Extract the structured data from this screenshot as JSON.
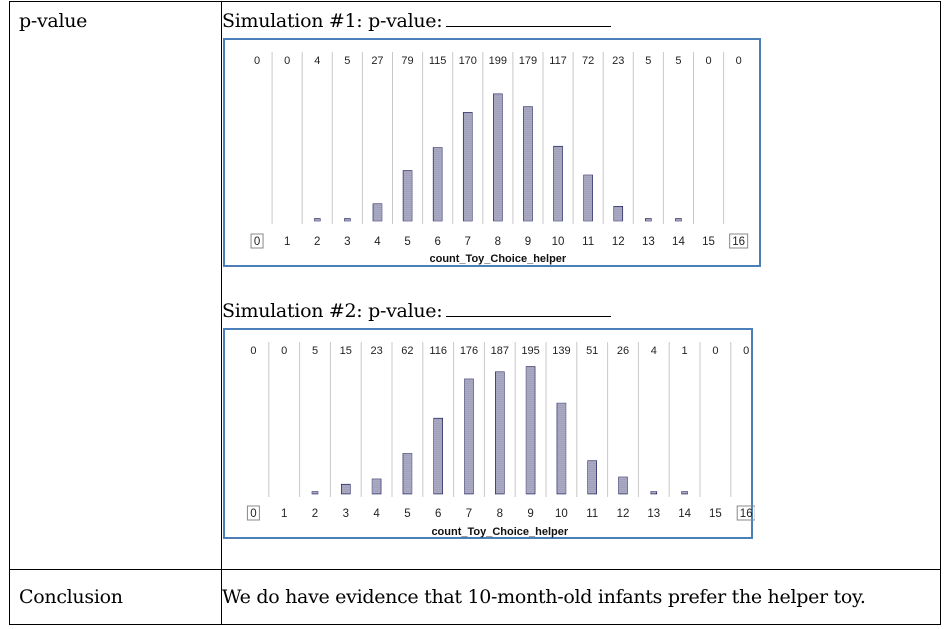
{
  "table": {
    "row1_label": "p-value",
    "row2_label": "Conclusion",
    "conclusion_text": "We do have evidence that 10-month-old infants prefer the helper toy."
  },
  "simulations": [
    {
      "title": "Simulation #1:  p-value:"
    },
    {
      "title": "Simulation #2:  p-value:"
    }
  ],
  "colors": {
    "frame": "#4a7fb8",
    "dots": "#2b2b66",
    "divider": "#c8c8c8"
  },
  "chart_data": [
    {
      "type": "bar",
      "xlabel": "count_Toy_Choice_helper",
      "categories": [
        "0",
        "1",
        "2",
        "3",
        "4",
        "5",
        "6",
        "7",
        "8",
        "9",
        "10",
        "11",
        "12",
        "13",
        "14",
        "15",
        "16"
      ],
      "values": [
        0,
        0,
        4,
        5,
        27,
        79,
        115,
        170,
        199,
        179,
        117,
        72,
        23,
        5,
        5,
        0,
        0
      ],
      "count_labels": [
        "0",
        "0",
        "4",
        "5",
        "27",
        "79",
        "115",
        "170",
        "199",
        "179",
        "117",
        "72",
        "23",
        "5",
        "5",
        "0",
        "0"
      ],
      "boxed_ticks": [
        "0",
        "16"
      ],
      "ylim": [
        0,
        205
      ]
    },
    {
      "type": "bar",
      "xlabel": "count_Toy_Choice_helper",
      "categories": [
        "0",
        "1",
        "2",
        "3",
        "4",
        "5",
        "6",
        "7",
        "8",
        "9",
        "10",
        "11",
        "12",
        "13",
        "14",
        "15",
        "16"
      ],
      "values": [
        0,
        0,
        5,
        15,
        23,
        62,
        116,
        176,
        187,
        195,
        139,
        51,
        26,
        4,
        1,
        0,
        0
      ],
      "count_labels": [
        "0",
        "0",
        "5",
        "15",
        "23",
        "62",
        "116",
        "176",
        "187",
        "195",
        "139",
        "51",
        "26",
        "4",
        "1",
        "0",
        "0"
      ],
      "boxed_ticks": [
        "0",
        "16"
      ],
      "ylim": [
        0,
        205
      ]
    }
  ]
}
